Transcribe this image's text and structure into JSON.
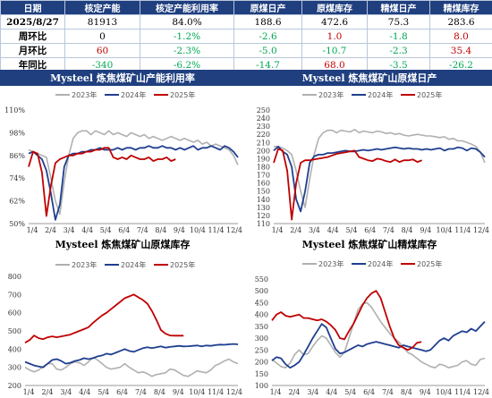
{
  "summary": {
    "headers": [
      "日期",
      "核定产能",
      "核定产能利用率",
      "原煤日产",
      "原煤库存",
      "精煤日产",
      "精煤库存"
    ],
    "rows": [
      {
        "label": "2025/8/27",
        "cells": [
          "81913",
          "84.0%",
          "188.6",
          "472.6",
          "75.3",
          "283.6"
        ],
        "signs": [
          "neutral",
          "neutral",
          "neutral",
          "neutral",
          "neutral",
          "neutral"
        ]
      },
      {
        "label": "周环比",
        "cells": [
          "0",
          "-1.2%",
          "-2.6",
          "1.0",
          "-1.8",
          "8.0"
        ],
        "signs": [
          "neutral",
          "neg",
          "neg",
          "pos",
          "neg",
          "pos"
        ]
      },
      {
        "label": "月环比",
        "cells": [
          "60",
          "-2.3%",
          "-5.0",
          "-10.7",
          "-2.3",
          "35.4"
        ],
        "signs": [
          "pos",
          "neg",
          "neg",
          "neg",
          "neg",
          "pos"
        ]
      },
      {
        "label": "年同比",
        "cells": [
          "-340",
          "-6.2%",
          "-14.7",
          "68.0",
          "-3.5",
          "-26.2"
        ],
        "signs": [
          "neg",
          "neg",
          "neg",
          "pos",
          "neg",
          "neg"
        ]
      }
    ]
  },
  "colors": {
    "s2023": "#b0b0b0",
    "s2024": "#1f3f8f",
    "s2025": "#c00000",
    "header": "#1f3f7f",
    "pos": "#c00000",
    "neg": "#00a651"
  },
  "chart_data": [
    {
      "type": "line",
      "title": "Mysteel  炼焦煤矿山产能利用率",
      "x_ticks": [
        "1/4",
        "2/4",
        "3/4",
        "4/4",
        "5/4",
        "6/4",
        "7/4",
        "8/4",
        "9/4",
        "10/4",
        "11/4",
        "12/4"
      ],
      "y_ticks": [
        "50%",
        "62%",
        "74%",
        "86%",
        "98%",
        "110%"
      ],
      "ylim": [
        50,
        110
      ],
      "grid": false,
      "legend_position": "top",
      "series": [
        {
          "name": "2023年",
          "key": "s2023",
          "values": [
            89,
            88,
            87,
            86,
            85,
            74,
            62,
            55,
            72,
            86,
            95,
            98,
            99,
            99,
            97,
            99,
            98,
            97,
            99,
            97,
            98,
            97,
            96,
            98,
            97,
            96,
            97,
            95,
            96,
            95,
            94,
            95,
            96,
            95,
            94,
            95,
            94,
            93,
            94,
            92,
            93,
            91,
            92,
            91,
            90,
            89,
            86,
            81
          ]
        },
        {
          "name": "2024年",
          "key": "s2024",
          "values": [
            87,
            88,
            86,
            84,
            78,
            66,
            52,
            60,
            80,
            86,
            87,
            87,
            88,
            88,
            89,
            89,
            90,
            89,
            89,
            89,
            90,
            89,
            90,
            90,
            89,
            90,
            90,
            91,
            90,
            90,
            91,
            90,
            90,
            89,
            90,
            89,
            90,
            91,
            89,
            90,
            90,
            91,
            90,
            89,
            91,
            90,
            88,
            85
          ]
        },
        {
          "name": "2025年",
          "key": "s2025",
          "values": [
            80,
            88,
            87,
            77,
            54,
            70,
            82,
            84,
            85,
            86,
            86,
            87,
            87,
            88,
            88,
            89,
            89,
            90,
            90,
            85,
            84,
            85,
            84,
            86,
            85,
            84,
            84,
            85,
            83,
            84,
            84,
            85,
            83,
            84,
            null,
            null,
            null,
            null,
            null,
            null,
            null,
            null,
            null,
            null,
            null,
            null,
            null,
            null
          ]
        }
      ]
    },
    {
      "type": "line",
      "title": "Mysteel  炼焦煤矿山原煤日产",
      "x_ticks": [
        "1/4",
        "2/4",
        "3/4",
        "4/4",
        "5/4",
        "6/4",
        "7/4",
        "8/4",
        "9/4",
        "10/4",
        "11/4",
        "12/4"
      ],
      "y_ticks": [
        "110",
        "120",
        "130",
        "140",
        "150",
        "160",
        "170",
        "180",
        "190",
        "200",
        "210",
        "220",
        "230",
        "240",
        "250"
      ],
      "ylim": [
        110,
        250
      ],
      "grid": false,
      "legend_position": "top",
      "series": [
        {
          "name": "2023年",
          "key": "s2023",
          "values": [
            205,
            205,
            203,
            200,
            195,
            175,
            150,
            130,
            165,
            195,
            215,
            222,
            225,
            225,
            222,
            225,
            224,
            223,
            226,
            222,
            224,
            223,
            222,
            224,
            223,
            221,
            222,
            220,
            221,
            219,
            218,
            219,
            220,
            219,
            218,
            218,
            217,
            216,
            217,
            214,
            215,
            212,
            212,
            210,
            208,
            205,
            198,
            185
          ]
        },
        {
          "name": "2024年",
          "key": "s2024",
          "values": [
            200,
            205,
            199,
            195,
            180,
            140,
            125,
            150,
            185,
            193,
            195,
            195,
            197,
            197,
            198,
            199,
            200,
            199,
            199,
            200,
            201,
            200,
            201,
            202,
            201,
            202,
            203,
            204,
            203,
            202,
            203,
            202,
            202,
            201,
            202,
            201,
            202,
            203,
            200,
            202,
            202,
            204,
            203,
            200,
            203,
            202,
            198,
            192
          ]
        },
        {
          "name": "2025年",
          "key": "s2025",
          "values": [
            185,
            202,
            200,
            175,
            115,
            160,
            185,
            188,
            188,
            189,
            190,
            191,
            192,
            194,
            196,
            197,
            198,
            199,
            200,
            192,
            190,
            188,
            187,
            190,
            189,
            187,
            186,
            189,
            186,
            188,
            188,
            189,
            186,
            188,
            null,
            null,
            null,
            null,
            null,
            null,
            null,
            null,
            null,
            null,
            null,
            null,
            null,
            null
          ]
        }
      ]
    },
    {
      "type": "line",
      "title": "Mysteel  炼焦煤矿山原煤库存",
      "x_ticks": [
        "1/4",
        "2/4",
        "3/4",
        "4/4",
        "5/4",
        "6/4",
        "7/4",
        "8/4",
        "9/4",
        "10/4",
        "11/4",
        "12/4"
      ],
      "y_ticks": [
        "200",
        "300",
        "400",
        "500",
        "600",
        "700",
        "800"
      ],
      "ylim": [
        200,
        800
      ],
      "grid": false,
      "legend_position": "top",
      "series": [
        {
          "name": "2023年",
          "key": "s2023",
          "values": [
            300,
            285,
            275,
            285,
            305,
            320,
            320,
            290,
            285,
            300,
            320,
            330,
            325,
            310,
            330,
            355,
            340,
            320,
            300,
            290,
            295,
            300,
            320,
            300,
            285,
            270,
            275,
            265,
            250,
            260,
            265,
            270,
            290,
            285,
            270,
            255,
            250,
            265,
            280,
            275,
            270,
            285,
            310,
            320,
            335,
            345,
            330,
            320
          ]
        },
        {
          "name": "2024年",
          "key": "s2024",
          "values": [
            330,
            320,
            310,
            305,
            300,
            320,
            340,
            345,
            335,
            320,
            325,
            335,
            340,
            350,
            345,
            350,
            360,
            365,
            375,
            370,
            380,
            390,
            400,
            390,
            385,
            395,
            405,
            410,
            405,
            410,
            415,
            408,
            412,
            415,
            418,
            415,
            416,
            418,
            420,
            415,
            420,
            418,
            422,
            425,
            424,
            426,
            428,
            426
          ]
        },
        {
          "name": "2025年",
          "key": "s2025",
          "values": [
            435,
            450,
            475,
            460,
            455,
            465,
            470,
            465,
            470,
            475,
            480,
            490,
            500,
            510,
            520,
            545,
            565,
            585,
            600,
            620,
            640,
            660,
            680,
            690,
            700,
            685,
            670,
            650,
            610,
            560,
            505,
            485,
            475,
            474,
            474,
            474,
            null,
            null,
            null,
            null,
            null,
            null,
            null,
            null,
            null,
            null,
            null,
            null
          ]
        }
      ]
    },
    {
      "type": "line",
      "title": "Mysteel  炼焦煤矿山精煤库存",
      "x_ticks": [
        "1/4",
        "2/4",
        "3/4",
        "4/4",
        "5/4",
        "6/4",
        "7/4",
        "8/4",
        "9/4",
        "10/4",
        "11/4",
        "12/4"
      ],
      "y_ticks": [
        "100",
        "150",
        "200",
        "250",
        "300",
        "350",
        "400",
        "450",
        "500",
        "550"
      ],
      "ylim": [
        100,
        550
      ],
      "grid": false,
      "legend_position": "top",
      "series": [
        {
          "name": "2023年",
          "key": "s2023",
          "values": [
            210,
            195,
            180,
            175,
            195,
            230,
            250,
            230,
            235,
            265,
            290,
            310,
            300,
            270,
            240,
            220,
            240,
            300,
            360,
            420,
            445,
            450,
            430,
            400,
            370,
            345,
            320,
            300,
            285,
            260,
            240,
            230,
            215,
            200,
            190,
            180,
            175,
            190,
            185,
            175,
            180,
            185,
            200,
            205,
            190,
            185,
            210,
            215
          ]
        },
        {
          "name": "2024年",
          "key": "s2024",
          "values": [
            205,
            220,
            215,
            190,
            175,
            185,
            200,
            230,
            265,
            300,
            330,
            360,
            345,
            300,
            255,
            235,
            240,
            250,
            260,
            270,
            265,
            275,
            280,
            285,
            280,
            275,
            270,
            265,
            260,
            270,
            265,
            260,
            255,
            250,
            245,
            250,
            270,
            290,
            300,
            290,
            310,
            320,
            330,
            325,
            340,
            330,
            350,
            370
          ]
        },
        {
          "name": "2025年",
          "key": "s2025",
          "values": [
            375,
            400,
            410,
            395,
            390,
            395,
            400,
            385,
            385,
            380,
            375,
            380,
            370,
            355,
            335,
            300,
            295,
            330,
            360,
            400,
            440,
            470,
            490,
            500,
            470,
            410,
            350,
            300,
            270,
            260,
            250,
            260,
            280,
            284,
            null,
            null,
            null,
            null,
            null,
            null,
            null,
            null,
            null,
            null,
            null,
            null,
            null,
            null
          ]
        }
      ]
    }
  ]
}
